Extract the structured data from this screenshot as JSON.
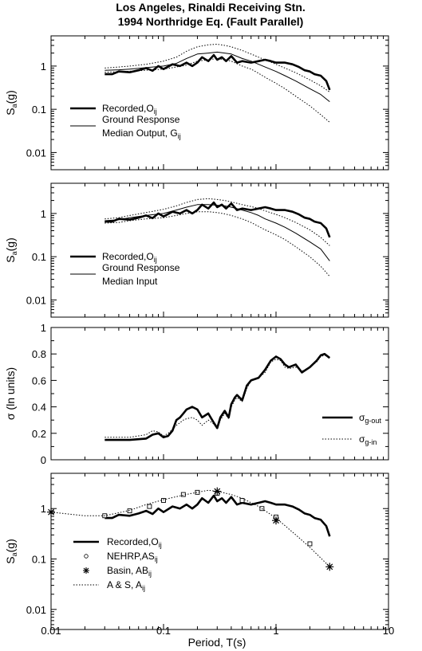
{
  "title_line1": "Los Angeles, Rinaldi Receiving Stn.",
  "title_line2": "1994 Northridge Eq. (Fault Parallel)",
  "xlabel": "Period, T(s)",
  "x_ticks": [
    "0.01",
    "0.1",
    "1",
    "10"
  ],
  "chart_data": [
    {
      "type": "line",
      "ylabel": "Sa(g)",
      "ylabel_main": "S",
      "ylabel_sub": "a",
      "ylabel_tail": "(g)",
      "xscale": "log",
      "yscale": "log",
      "xlim": [
        0.01,
        10
      ],
      "ylim": [
        0.004,
        5
      ],
      "y_ticks": [
        "0.01",
        "0.1",
        "1"
      ],
      "legend_placement": "bottom-left",
      "series": [
        {
          "name": "Recorded,O",
          "name_sub": "ij",
          "style": "thick",
          "x": [
            0.03,
            0.035,
            0.04,
            0.05,
            0.06,
            0.07,
            0.08,
            0.09,
            0.1,
            0.12,
            0.14,
            0.16,
            0.18,
            0.2,
            0.22,
            0.25,
            0.28,
            0.3,
            0.33,
            0.36,
            0.4,
            0.45,
            0.5,
            0.6,
            0.7,
            0.8,
            0.9,
            1.0,
            1.2,
            1.4,
            1.6,
            1.8,
            2.0,
            2.2,
            2.5,
            2.8,
            3.0
          ],
          "y": [
            0.65,
            0.65,
            0.75,
            0.72,
            0.8,
            0.9,
            0.78,
            1.0,
            0.85,
            1.1,
            1.0,
            1.2,
            1.0,
            1.2,
            1.6,
            1.3,
            1.8,
            1.4,
            1.6,
            1.3,
            1.7,
            1.2,
            1.3,
            1.2,
            1.3,
            1.4,
            1.3,
            1.2,
            1.2,
            1.1,
            0.95,
            0.8,
            0.75,
            0.65,
            0.6,
            0.45,
            0.28
          ]
        },
        {
          "name": "Ground Response",
          "name_line2": "Median Output, G",
          "name_sub": "ij",
          "style": "thin",
          "x": [
            0.03,
            0.04,
            0.05,
            0.07,
            0.1,
            0.13,
            0.16,
            0.2,
            0.25,
            0.3,
            0.35,
            0.4,
            0.5,
            0.6,
            0.7,
            0.8,
            1.0,
            1.2,
            1.5,
            2.0,
            2.5,
            3.0
          ],
          "y": [
            0.8,
            0.82,
            0.85,
            0.92,
            1.0,
            1.15,
            1.5,
            1.9,
            2.0,
            2.1,
            2.0,
            1.9,
            1.5,
            1.3,
            1.1,
            0.95,
            0.75,
            0.6,
            0.45,
            0.3,
            0.22,
            0.15
          ]
        },
        {
          "name": "upper",
          "style": "dotted",
          "x": [
            0.03,
            0.04,
            0.05,
            0.07,
            0.1,
            0.13,
            0.16,
            0.2,
            0.25,
            0.3,
            0.35,
            0.4,
            0.5,
            0.6,
            0.7,
            0.8,
            1.0,
            1.2,
            1.5,
            2.0,
            2.5,
            3.0
          ],
          "y": [
            0.9,
            0.95,
            1.0,
            1.1,
            1.3,
            1.6,
            2.2,
            2.8,
            3.1,
            3.2,
            3.0,
            2.8,
            2.3,
            1.9,
            1.6,
            1.4,
            1.1,
            0.9,
            0.7,
            0.48,
            0.35,
            0.25
          ]
        },
        {
          "name": "lower",
          "style": "dotted",
          "x": [
            0.03,
            0.04,
            0.05,
            0.07,
            0.1,
            0.13,
            0.16,
            0.2,
            0.25,
            0.3,
            0.35,
            0.4,
            0.5,
            0.6,
            0.7,
            0.8,
            1.0,
            1.2,
            1.5,
            2.0,
            2.5,
            3.0
          ],
          "y": [
            0.72,
            0.74,
            0.76,
            0.8,
            0.85,
            0.95,
            1.05,
            1.3,
            1.4,
            1.5,
            1.4,
            1.3,
            1.0,
            0.85,
            0.68,
            0.55,
            0.4,
            0.3,
            0.2,
            0.12,
            0.075,
            0.05
          ]
        }
      ]
    },
    {
      "type": "line",
      "ylabel": "Sa(g)",
      "ylabel_main": "S",
      "ylabel_sub": "a",
      "ylabel_tail": "(g)",
      "xscale": "log",
      "yscale": "log",
      "xlim": [
        0.01,
        10
      ],
      "ylim": [
        0.004,
        5
      ],
      "y_ticks": [
        "0.01",
        "0.1",
        "1"
      ],
      "legend_placement": "bottom-left",
      "series": [
        {
          "name": "Recorded,O",
          "name_sub": "ij",
          "style": "thick",
          "x": [
            0.03,
            0.035,
            0.04,
            0.05,
            0.06,
            0.07,
            0.08,
            0.09,
            0.1,
            0.12,
            0.14,
            0.16,
            0.18,
            0.2,
            0.22,
            0.25,
            0.28,
            0.3,
            0.33,
            0.36,
            0.4,
            0.45,
            0.5,
            0.6,
            0.7,
            0.8,
            0.9,
            1.0,
            1.2,
            1.4,
            1.6,
            1.8,
            2.0,
            2.2,
            2.5,
            2.8,
            3.0
          ],
          "y": [
            0.65,
            0.65,
            0.75,
            0.72,
            0.8,
            0.9,
            0.78,
            1.0,
            0.85,
            1.1,
            1.0,
            1.2,
            1.0,
            1.2,
            1.6,
            1.3,
            1.8,
            1.4,
            1.6,
            1.3,
            1.7,
            1.2,
            1.3,
            1.2,
            1.3,
            1.4,
            1.3,
            1.2,
            1.2,
            1.1,
            0.95,
            0.8,
            0.75,
            0.65,
            0.6,
            0.45,
            0.28
          ]
        },
        {
          "name": "Ground Response",
          "name_line2": "Median Input",
          "style": "thin",
          "x": [
            0.03,
            0.04,
            0.05,
            0.07,
            0.1,
            0.13,
            0.16,
            0.2,
            0.25,
            0.3,
            0.35,
            0.4,
            0.5,
            0.6,
            0.7,
            0.8,
            1.0,
            1.2,
            1.5,
            2.0,
            2.5,
            3.0
          ],
          "y": [
            0.68,
            0.72,
            0.8,
            0.9,
            1.0,
            1.2,
            1.4,
            1.6,
            1.6,
            1.55,
            1.5,
            1.4,
            1.2,
            1.05,
            0.9,
            0.75,
            0.6,
            0.48,
            0.35,
            0.22,
            0.15,
            0.08
          ]
        },
        {
          "name": "upper",
          "style": "dotted",
          "x": [
            0.03,
            0.04,
            0.05,
            0.07,
            0.1,
            0.13,
            0.16,
            0.2,
            0.25,
            0.3,
            0.35,
            0.4,
            0.5,
            0.6,
            0.7,
            0.8,
            1.0,
            1.2,
            1.5,
            2.0,
            2.5,
            3.0
          ],
          "y": [
            0.75,
            0.8,
            0.9,
            1.05,
            1.25,
            1.5,
            1.8,
            2.1,
            2.2,
            2.1,
            2.0,
            1.85,
            1.6,
            1.45,
            1.3,
            1.15,
            0.95,
            0.8,
            0.62,
            0.42,
            0.28,
            0.18
          ]
        },
        {
          "name": "lower",
          "style": "dotted",
          "x": [
            0.03,
            0.04,
            0.05,
            0.07,
            0.1,
            0.13,
            0.16,
            0.2,
            0.25,
            0.3,
            0.35,
            0.4,
            0.5,
            0.6,
            0.7,
            0.8,
            1.0,
            1.2,
            1.5,
            2.0,
            2.5,
            3.0
          ],
          "y": [
            0.6,
            0.62,
            0.68,
            0.75,
            0.8,
            0.9,
            1.0,
            1.1,
            1.1,
            1.05,
            0.98,
            0.9,
            0.75,
            0.62,
            0.5,
            0.42,
            0.32,
            0.25,
            0.17,
            0.1,
            0.06,
            0.035
          ]
        }
      ]
    },
    {
      "type": "line",
      "ylabel": "σ (ln units)",
      "xscale": "log",
      "yscale": "linear",
      "xlim": [
        0.01,
        10
      ],
      "ylim": [
        0,
        1
      ],
      "y_ticks": [
        "0",
        "0.2",
        "0.4",
        "0.6",
        "0.8",
        "1"
      ],
      "legend_placement": "bottom-right",
      "series": [
        {
          "name": "σ",
          "name_sub": "g-out",
          "style": "thick",
          "x": [
            0.03,
            0.05,
            0.07,
            0.08,
            0.09,
            0.1,
            0.11,
            0.12,
            0.13,
            0.14,
            0.15,
            0.16,
            0.18,
            0.2,
            0.22,
            0.25,
            0.28,
            0.3,
            0.32,
            0.35,
            0.38,
            0.4,
            0.43,
            0.45,
            0.5,
            0.55,
            0.6,
            0.7,
            0.8,
            0.9,
            1.0,
            1.1,
            1.2,
            1.3,
            1.5,
            1.7,
            2.0,
            2.3,
            2.5,
            2.7,
            3.0
          ],
          "y": [
            0.15,
            0.15,
            0.16,
            0.19,
            0.2,
            0.17,
            0.18,
            0.22,
            0.3,
            0.32,
            0.35,
            0.38,
            0.4,
            0.38,
            0.32,
            0.35,
            0.28,
            0.24,
            0.32,
            0.37,
            0.32,
            0.42,
            0.47,
            0.49,
            0.45,
            0.56,
            0.6,
            0.62,
            0.68,
            0.75,
            0.78,
            0.76,
            0.72,
            0.7,
            0.72,
            0.66,
            0.7,
            0.75,
            0.79,
            0.8,
            0.77
          ]
        },
        {
          "name": "σ",
          "name_sub": "g-in",
          "style": "dotted",
          "x": [
            0.03,
            0.05,
            0.07,
            0.08,
            0.09,
            0.1,
            0.11,
            0.12,
            0.13,
            0.14,
            0.15,
            0.16,
            0.18,
            0.2,
            0.22,
            0.25,
            0.28,
            0.3,
            0.32,
            0.35,
            0.38,
            0.4,
            0.43,
            0.45,
            0.5,
            0.55,
            0.6,
            0.7,
            0.8,
            0.9,
            1.0,
            1.1,
            1.2,
            1.3,
            1.5,
            1.7,
            2.0,
            2.3,
            2.5,
            2.7,
            3.0
          ],
          "y": [
            0.17,
            0.17,
            0.19,
            0.22,
            0.21,
            0.18,
            0.2,
            0.23,
            0.26,
            0.28,
            0.3,
            0.31,
            0.32,
            0.3,
            0.26,
            0.3,
            0.27,
            0.23,
            0.3,
            0.35,
            0.31,
            0.4,
            0.45,
            0.47,
            0.44,
            0.54,
            0.6,
            0.62,
            0.66,
            0.74,
            0.76,
            0.75,
            0.7,
            0.69,
            0.7,
            0.67,
            0.7,
            0.74,
            0.78,
            0.79,
            0.78
          ]
        }
      ]
    },
    {
      "type": "scatter",
      "ylabel": "Sa(g)",
      "ylabel_main": "S",
      "ylabel_sub": "a",
      "ylabel_tail": "(g)",
      "xscale": "log",
      "yscale": "log",
      "xlim": [
        0.01,
        10
      ],
      "ylim": [
        0.004,
        5
      ],
      "y_ticks": [
        "0.01",
        "0.1",
        "1"
      ],
      "legend_placement": "bottom-left",
      "series": [
        {
          "name": "Recorded,O",
          "name_sub": "ij",
          "style": "thick",
          "x": [
            0.03,
            0.035,
            0.04,
            0.05,
            0.06,
            0.07,
            0.08,
            0.09,
            0.1,
            0.12,
            0.14,
            0.16,
            0.18,
            0.2,
            0.22,
            0.25,
            0.28,
            0.3,
            0.33,
            0.36,
            0.4,
            0.45,
            0.5,
            0.6,
            0.7,
            0.8,
            0.9,
            1.0,
            1.2,
            1.4,
            1.6,
            1.8,
            2.0,
            2.2,
            2.5,
            2.8,
            3.0
          ],
          "y": [
            0.65,
            0.65,
            0.75,
            0.72,
            0.8,
            0.9,
            0.78,
            1.0,
            0.85,
            1.1,
            1.0,
            1.2,
            1.0,
            1.2,
            1.6,
            1.3,
            1.8,
            1.4,
            1.6,
            1.3,
            1.7,
            1.2,
            1.3,
            1.2,
            1.3,
            1.4,
            1.3,
            1.2,
            1.2,
            1.1,
            0.95,
            0.8,
            0.75,
            0.65,
            0.6,
            0.45,
            0.28
          ]
        },
        {
          "name": "NEHRP,AS",
          "name_sub": "ij",
          "style": "square",
          "x": [
            0.03,
            0.05,
            0.075,
            0.1,
            0.15,
            0.2,
            0.3,
            0.5,
            0.75,
            1.0,
            2.0
          ],
          "y": [
            0.72,
            0.9,
            1.1,
            1.45,
            1.9,
            2.1,
            2.0,
            1.45,
            1.0,
            0.68,
            0.2
          ]
        },
        {
          "name": "Basin, AB",
          "name_sub": "ij",
          "style": "star",
          "x": [
            0.01,
            0.3,
            1.0,
            3.0
          ],
          "y": [
            0.85,
            2.2,
            0.58,
            0.07
          ]
        },
        {
          "name": "A & S, A",
          "name_sub": "ij",
          "style": "dotted",
          "x": [
            0.01,
            0.02,
            0.03,
            0.05,
            0.07,
            0.1,
            0.15,
            0.2,
            0.25,
            0.3,
            0.4,
            0.5,
            0.7,
            1.0,
            1.5,
            2.0,
            3.0
          ],
          "y": [
            0.85,
            0.72,
            0.72,
            0.92,
            1.2,
            1.5,
            1.85,
            2.1,
            2.3,
            2.2,
            1.9,
            1.6,
            1.1,
            0.65,
            0.3,
            0.17,
            0.07
          ]
        }
      ]
    }
  ]
}
